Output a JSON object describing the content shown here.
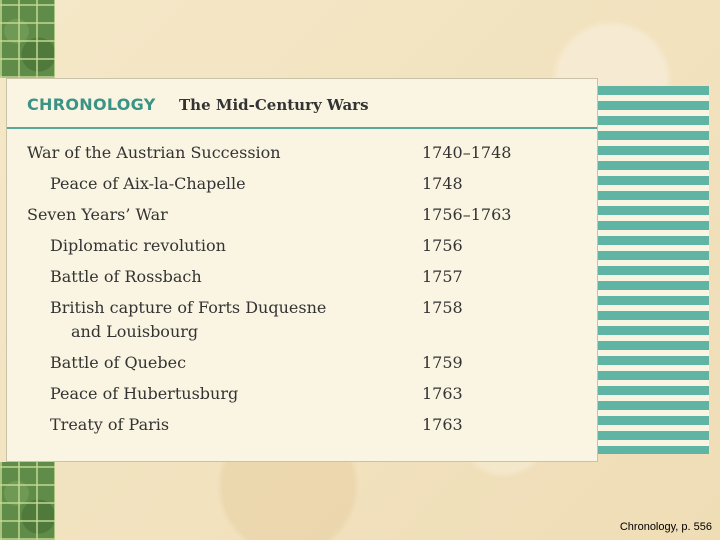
{
  "header": {
    "label": "CHRONOLOGY",
    "title": "The Mid-Century Wars"
  },
  "events": [
    {
      "name": "War of the Austrian Succession",
      "year": "1740–1748"
    },
    {
      "name": "Peace of Aix-la-Chapelle",
      "year": "1748"
    },
    {
      "name": "Seven Years’ War",
      "year": "1756–1763"
    },
    {
      "name": "Diplomatic revolution",
      "year": "1756"
    },
    {
      "name": "Battle of Rossbach",
      "year": "1757"
    },
    {
      "name": "British capture of Forts Duquesne",
      "name_cont": "and Louisbourg",
      "year": "1758"
    },
    {
      "name": "Battle of Quebec",
      "year": "1759"
    },
    {
      "name": "Peace of Hubertusburg",
      "year": "1763"
    },
    {
      "name": "Treaty of Paris",
      "year": "1763"
    }
  ],
  "caption": "Chronology, p. 556",
  "colors": {
    "accent": "#3a9384",
    "stripe": "#5fb4a4",
    "card": "#faf5e2",
    "background": "#f3e4c2"
  }
}
